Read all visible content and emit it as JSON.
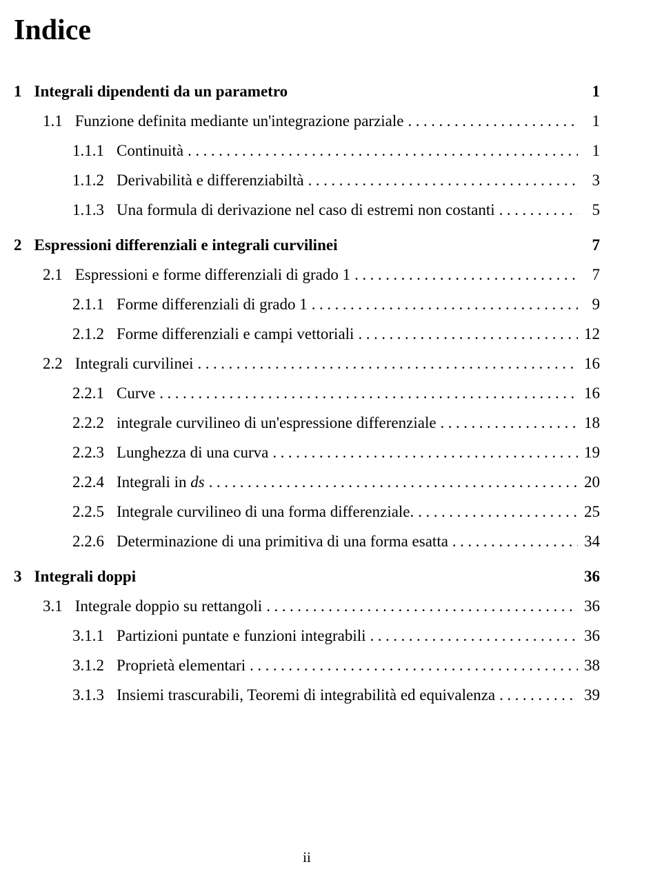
{
  "title": "Indice",
  "footer": "ii",
  "dotFill": "....................................................................................",
  "entries": [
    {
      "num": "1",
      "label": "Integrali dipendenti da un parametro",
      "page": "1",
      "level": 0,
      "type": "chapter"
    },
    {
      "num": "1.1",
      "label": "Funzione definita mediante un'integrazione parziale",
      "page": "1",
      "level": 1,
      "type": "section"
    },
    {
      "num": "1.1.1",
      "label": "Continuità",
      "page": "1",
      "level": 2,
      "type": "subsection"
    },
    {
      "num": "1.1.2",
      "label": "Derivabilità e differenziabiltà",
      "page": "3",
      "level": 2,
      "type": "subsection"
    },
    {
      "num": "1.1.3",
      "label": "Una formula di derivazione nel caso di estremi non costanti",
      "page": "5",
      "level": 2,
      "type": "subsection"
    },
    {
      "num": "2",
      "label": "Espressioni differenziali e integrali curvilinei",
      "page": "7",
      "level": 0,
      "type": "chapter"
    },
    {
      "num": "2.1",
      "label": "Espressioni e forme differenziali di grado 1",
      "page": "7",
      "level": 1,
      "type": "section"
    },
    {
      "num": "2.1.1",
      "label": "Forme differenziali di grado 1",
      "page": "9",
      "level": 2,
      "type": "subsection"
    },
    {
      "num": "2.1.2",
      "label": "Forme differenziali e campi vettoriali",
      "page": "12",
      "level": 2,
      "type": "subsection"
    },
    {
      "num": "2.2",
      "label": "Integrali curvilinei",
      "page": "16",
      "level": 1,
      "type": "section"
    },
    {
      "num": "2.2.1",
      "label": "Curve",
      "page": "16",
      "level": 2,
      "type": "subsection"
    },
    {
      "num": "2.2.2",
      "label": "integrale curvilineo di un'espressione differenziale",
      "page": "18",
      "level": 2,
      "type": "subsection"
    },
    {
      "num": "2.2.3",
      "label": "Lunghezza di una curva",
      "page": "19",
      "level": 2,
      "type": "subsection"
    },
    {
      "num": "2.2.4",
      "label": "Integrali in <span class=\"ds\">ds</span>",
      "page": "20",
      "level": 2,
      "type": "subsection",
      "html": true
    },
    {
      "num": "2.2.5",
      "label": "Integrale curvilineo di una forma differenziale.",
      "page": "25",
      "level": 2,
      "type": "subsection"
    },
    {
      "num": "2.2.6",
      "label": "Determinazione di una primitiva di una forma esatta",
      "page": "34",
      "level": 2,
      "type": "subsection"
    },
    {
      "num": "3",
      "label": "Integrali doppi",
      "page": "36",
      "level": 0,
      "type": "chapter"
    },
    {
      "num": "3.1",
      "label": "Integrale doppio su rettangoli",
      "page": "36",
      "level": 1,
      "type": "section"
    },
    {
      "num": "3.1.1",
      "label": "Partizioni puntate e funzioni integrabili",
      "page": "36",
      "level": 2,
      "type": "subsection"
    },
    {
      "num": "3.1.2",
      "label": "Proprietà elementari",
      "page": "38",
      "level": 2,
      "type": "subsection"
    },
    {
      "num": "3.1.3",
      "label": "Insiemi trascurabili, Teoremi di integrabilità ed equivalenza",
      "page": "39",
      "level": 2,
      "type": "subsection"
    }
  ]
}
